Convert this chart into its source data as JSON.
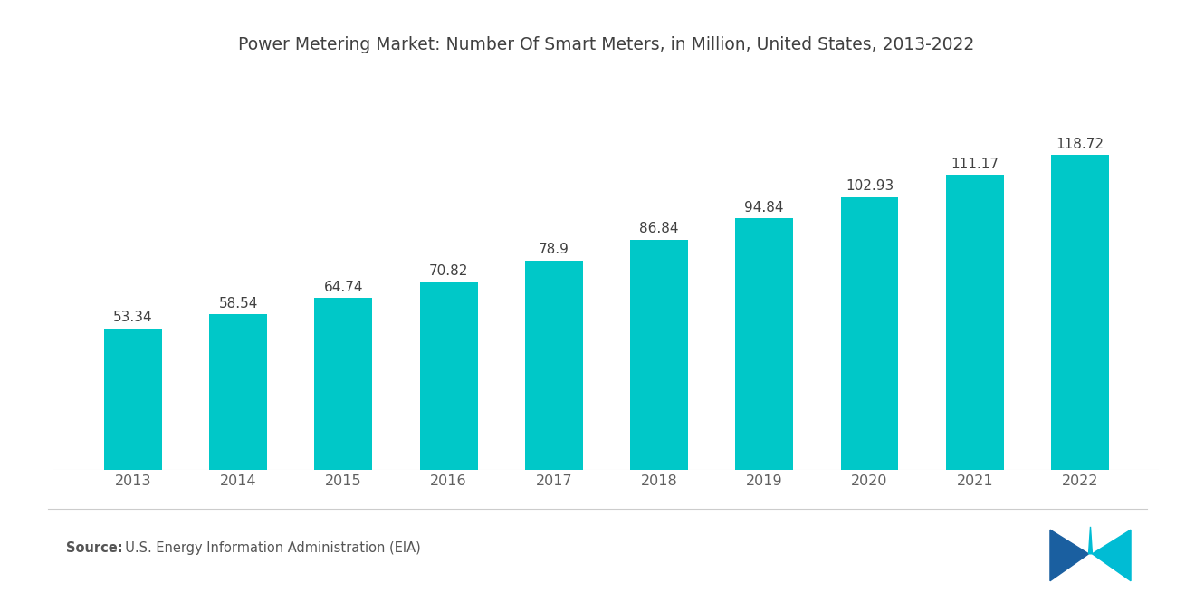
{
  "title": "Power Metering Market: Number Of Smart Meters, in Million, United States, 2013-2022",
  "years": [
    2013,
    2014,
    2015,
    2016,
    2017,
    2018,
    2019,
    2020,
    2021,
    2022
  ],
  "values": [
    53.34,
    58.54,
    64.74,
    70.82,
    78.9,
    86.84,
    94.84,
    102.93,
    111.17,
    118.72
  ],
  "bar_color": "#00C8C8",
  "background_color": "#ffffff",
  "title_color": "#404040",
  "label_color": "#404040",
  "tick_color": "#606060",
  "source_bold": "Source:",
  "source_text": "  U.S. Energy Information Administration (EIA)",
  "bar_width": 0.55,
  "ylim": [
    0,
    150
  ],
  "title_fontsize": 13.5,
  "label_fontsize": 11,
  "tick_fontsize": 11.5,
  "source_fontsize": 10.5,
  "logo_color1": "#1a5fa0",
  "logo_color2": "#00bcd4"
}
